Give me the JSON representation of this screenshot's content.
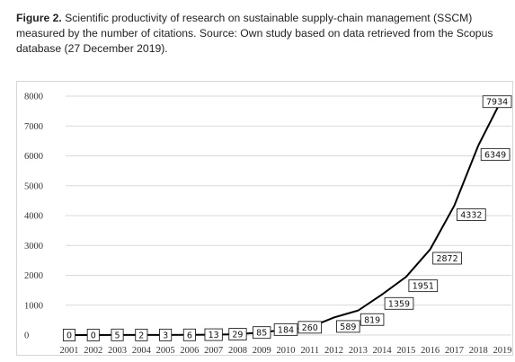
{
  "caption": {
    "figure_label": "Figure 2.",
    "text": " Scientific productivity of research on sustainable supply-chain management (SSCM) measured by the number of citations. Source: Own study based on data retrieved from the Scopus database (27 December 2019)."
  },
  "chart_data": {
    "type": "line",
    "title": "",
    "xlabel": "",
    "ylabel": "",
    "categories": [
      "2001",
      "2002",
      "2003",
      "2004",
      "2005",
      "2006",
      "2007",
      "2008",
      "2009",
      "2010",
      "2011",
      "2012",
      "2013",
      "2014",
      "2015",
      "2016",
      "2017",
      "2018",
      "2019"
    ],
    "series": [
      {
        "values": [
          0,
          0,
          5,
          2,
          3,
          6,
          13,
          29,
          85,
          184,
          260,
          589,
          819,
          1359,
          1951,
          2872,
          4332,
          6349,
          7934
        ],
        "data_labels": [
          "0",
          "0",
          "5",
          "2",
          "3",
          "6",
          "13",
          "29",
          "85",
          "184",
          "260",
          "589",
          "819",
          "1359",
          "1951",
          "2872",
          "4332",
          "6349",
          "7934"
        ]
      }
    ],
    "y_ticks": [
      "0",
      "1000",
      "2000",
      "3000",
      "4000",
      "5000",
      "6000",
      "7000",
      "8000"
    ],
    "ylim": [
      0,
      8000
    ],
    "grid": true,
    "colors": {
      "line": "#000000",
      "grid": "#d9d9d9"
    }
  }
}
